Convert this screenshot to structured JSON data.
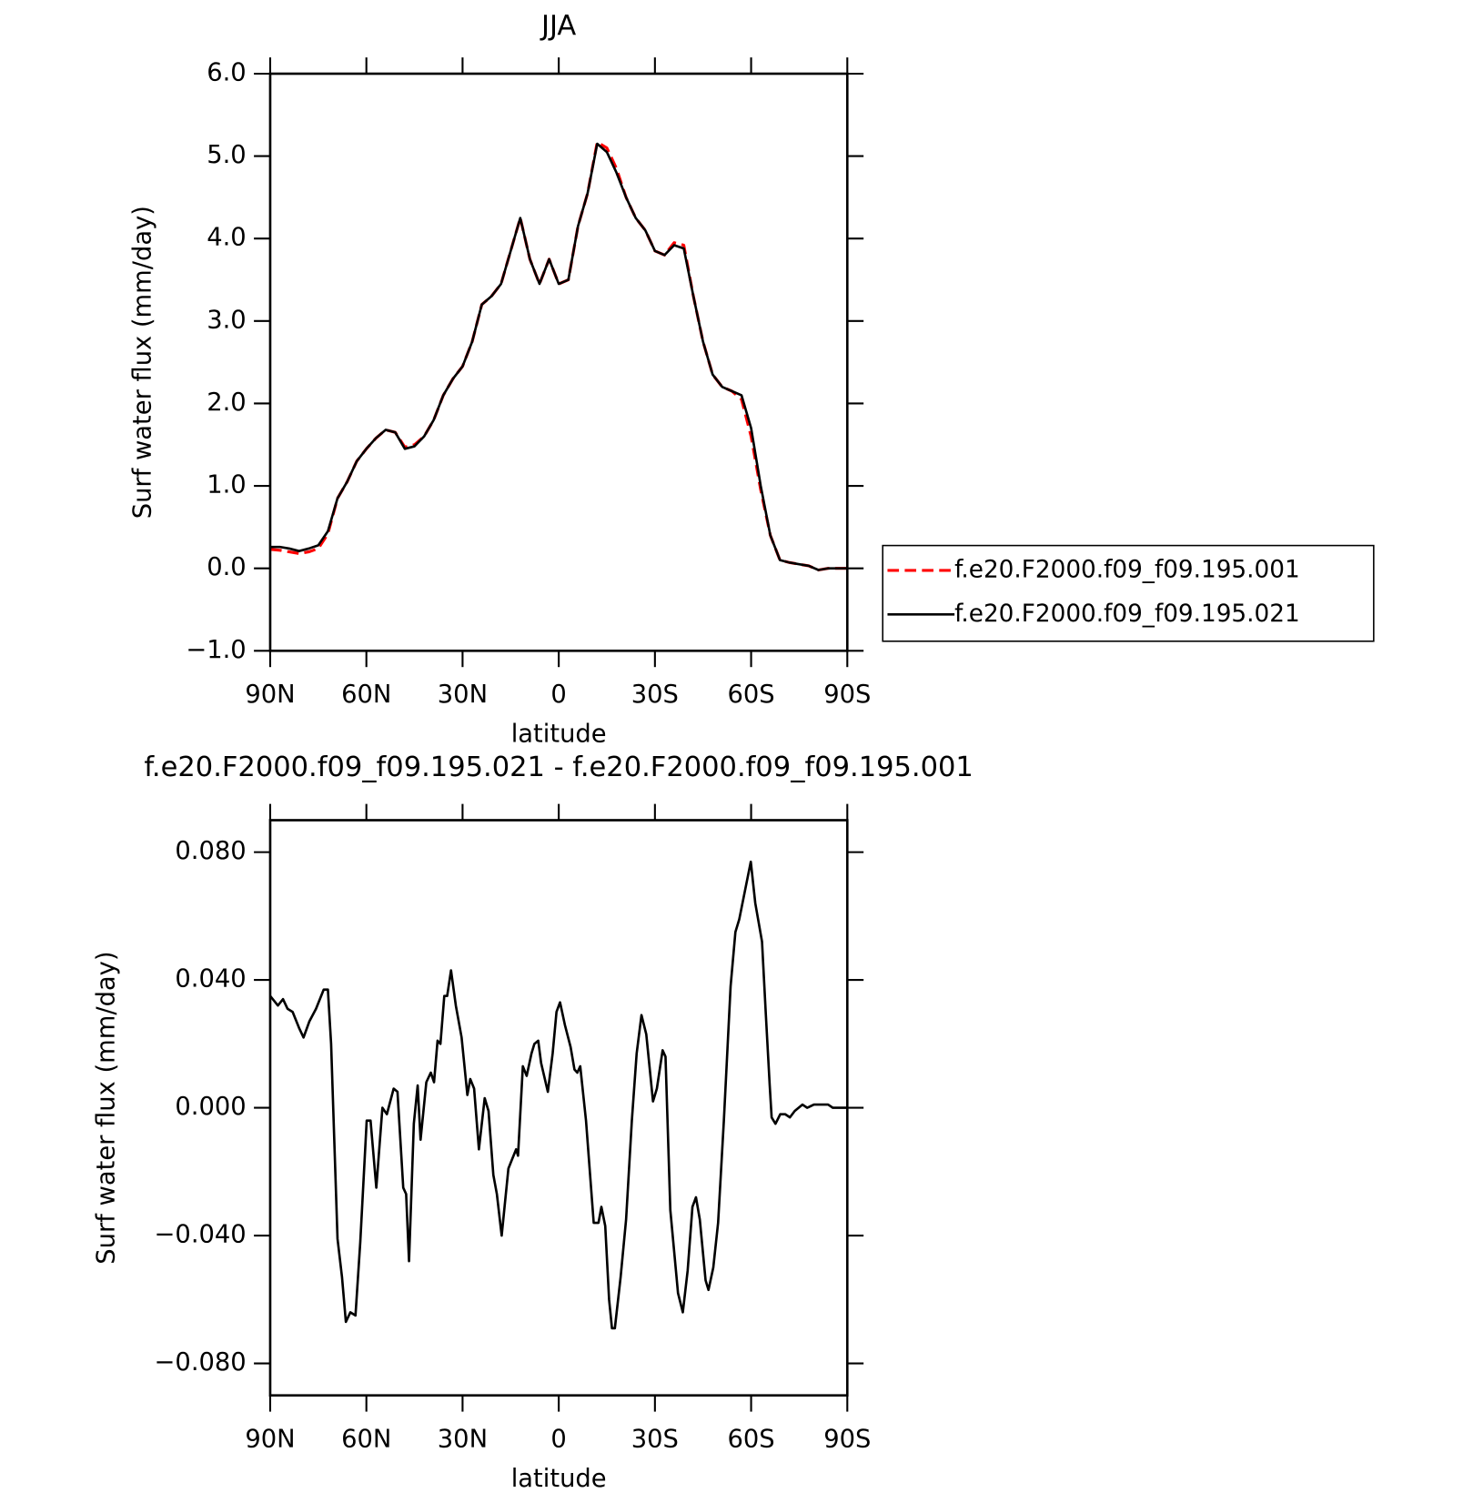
{
  "chart_data": [
    {
      "type": "line",
      "title": "JJA",
      "x_label": "latitude",
      "y_label": "Surf water flux (mm/day)",
      "xlim": [
        90,
        -90
      ],
      "xticks": [
        {
          "value": 90,
          "label": "90N"
        },
        {
          "value": 60,
          "label": "60N"
        },
        {
          "value": 30,
          "label": "30N"
        },
        0,
        {
          "value": -30,
          "label": "30S"
        },
        {
          "value": -60,
          "label": "60S"
        },
        {
          "value": -90,
          "label": "90S"
        }
      ],
      "ylim": [
        -1,
        6
      ],
      "yticks": [
        {
          "value": -1,
          "label": "−1.0"
        },
        {
          "value": 0,
          "label": "0.0"
        },
        {
          "value": 1,
          "label": "1.0"
        },
        {
          "value": 2,
          "label": "2.0"
        },
        {
          "value": 3,
          "label": "3.0"
        },
        {
          "value": 4,
          "label": "4.0"
        },
        {
          "value": 5,
          "label": "5.0"
        },
        {
          "value": 6,
          "label": "6.0"
        }
      ],
      "legend": "right",
      "x": [
        90,
        87,
        84,
        81,
        78,
        75,
        72,
        69,
        66,
        63,
        60,
        57,
        54,
        51,
        48,
        45,
        42,
        39,
        36,
        33,
        30,
        27,
        24,
        21,
        18,
        15,
        12,
        9,
        6,
        3,
        0,
        -3,
        -6,
        -9,
        -12,
        -15,
        -18,
        -21,
        -24,
        -27,
        -30,
        -33,
        -36,
        -39,
        -42,
        -45,
        -48,
        -51,
        -54,
        -57,
        -60,
        -63,
        -66,
        -69,
        -72,
        -75,
        -78,
        -81,
        -84,
        -87,
        -90
      ],
      "series": [
        {
          "name": "f.e20.F2000.f09_f09.195.001",
          "color": "#ff0000",
          "linestyle": "dashed",
          "values": [
            0.23,
            0.22,
            0.2,
            0.18,
            0.2,
            0.24,
            0.42,
            0.85,
            1.05,
            1.3,
            1.45,
            1.58,
            1.68,
            1.65,
            1.47,
            1.5,
            1.6,
            1.8,
            2.1,
            2.3,
            2.45,
            2.75,
            3.2,
            3.3,
            3.45,
            3.85,
            4.25,
            3.75,
            3.45,
            3.75,
            3.45,
            3.5,
            4.15,
            4.55,
            5.17,
            5.1,
            4.85,
            4.5,
            4.25,
            4.1,
            3.85,
            3.8,
            3.95,
            3.92,
            3.3,
            2.75,
            2.35,
            2.2,
            2.15,
            2.05,
            1.6,
            0.95,
            0.4,
            0.1,
            0.07,
            0.05,
            0.03,
            -0.02,
            0.0,
            0.0,
            0.0
          ]
        },
        {
          "name": "f.e20.F2000.f09_f09.195.021",
          "color": "#000000",
          "linestyle": "solid",
          "values": [
            0.26,
            0.26,
            0.24,
            0.21,
            0.24,
            0.28,
            0.45,
            0.85,
            1.05,
            1.3,
            1.45,
            1.58,
            1.68,
            1.65,
            1.45,
            1.48,
            1.6,
            1.8,
            2.1,
            2.3,
            2.45,
            2.75,
            3.2,
            3.3,
            3.45,
            3.85,
            4.25,
            3.75,
            3.45,
            3.75,
            3.45,
            3.5,
            4.15,
            4.55,
            5.15,
            5.05,
            4.8,
            4.5,
            4.25,
            4.1,
            3.85,
            3.8,
            3.92,
            3.88,
            3.3,
            2.75,
            2.35,
            2.2,
            2.15,
            2.1,
            1.7,
            1.0,
            0.4,
            0.1,
            0.07,
            0.05,
            0.03,
            -0.02,
            0.0,
            0.0,
            0.0
          ]
        }
      ]
    },
    {
      "type": "line",
      "title": "f.e20.F2000.f09_f09.195.021 - f.e20.F2000.f09_f09.195.001",
      "x_label": "latitude",
      "y_label": "Surf water flux (mm/day)",
      "xlim": [
        90,
        -90
      ],
      "xticks": [
        {
          "value": 90,
          "label": "90N"
        },
        {
          "value": 60,
          "label": "60N"
        },
        {
          "value": 30,
          "label": "30N"
        },
        0,
        {
          "value": -30,
          "label": "30S"
        },
        {
          "value": -60,
          "label": "60S"
        },
        {
          "value": -90,
          "label": "90S"
        }
      ],
      "ylim": [
        -0.09,
        0.09
      ],
      "yticks": [
        {
          "value": -0.08,
          "label": "−0.080"
        },
        {
          "value": -0.04,
          "label": "−0.040"
        },
        {
          "value": 0,
          "label": "0.000"
        },
        {
          "value": 0.04,
          "label": "0.040"
        },
        {
          "value": 0.08,
          "label": "0.080"
        }
      ],
      "color": "#000000",
      "x": [
        90,
        87.6,
        86,
        84.6,
        83,
        81,
        79.6,
        77.8,
        75.7,
        73.3,
        72,
        71,
        69,
        67.6,
        66.4,
        65,
        63.4,
        61.9,
        59.9,
        58.7,
        56.9,
        55,
        53.6,
        51.5,
        50.3,
        48.5,
        47.6,
        46.7,
        45.2,
        44,
        43.1,
        41.3,
        39.9,
        38.9,
        37.8,
        36.9,
        35.7,
        34.8,
        33.6,
        32.1,
        30.3,
        28.5,
        27.6,
        26.4,
        24.9,
        23.1,
        21.9,
        20.4,
        19.3,
        17.8,
        16.9,
        15.7,
        14.5,
        13.3,
        12.7,
        11.2,
        10,
        8.5,
        7.6,
        6.4,
        5.5,
        3.4,
        1.9,
        0.7,
        -0.4,
        -1.9,
        -3.7,
        -4.9,
        -5.8,
        -6.7,
        -8.5,
        -10.9,
        -12.4,
        -13.3,
        -14.5,
        -15.7,
        -16.6,
        -17.5,
        -19.3,
        -21,
        -22.8,
        -24.3,
        -25.8,
        -27.3,
        -29.4,
        -30.6,
        -32.4,
        -33.3,
        -34.8,
        -37.2,
        -38.7,
        -40.2,
        -41.7,
        -42.8,
        -44,
        -45.8,
        -46.7,
        -48.2,
        -49.7,
        -51.5,
        -53.6,
        -55.1,
        -56.3,
        -58.1,
        -59.9,
        -61.3,
        -63.4,
        -64.6,
        -65.8,
        -66.4,
        -67.6,
        -69.1,
        -70.6,
        -72.1,
        -73.6,
        -76,
        -77.5,
        -79.6,
        -82,
        -84,
        -85.5,
        -87.6,
        -90
      ],
      "values": [
        0.035,
        0.032,
        0.034,
        0.031,
        0.03,
        0.025,
        0.022,
        0.027,
        0.031,
        0.037,
        0.037,
        0.02,
        -0.041,
        -0.053,
        -0.067,
        -0.064,
        -0.065,
        -0.042,
        -0.004,
        -0.004,
        -0.025,
        0,
        -0.002,
        0.006,
        0.005,
        -0.025,
        -0.027,
        -0.048,
        -0.005,
        0.007,
        -0.01,
        0.008,
        0.011,
        0.008,
        0.021,
        0.02,
        0.035,
        0.035,
        0.043,
        0.032,
        0.022,
        0.004,
        0.009,
        0.006,
        -0.013,
        0.003,
        -0.001,
        -0.021,
        -0.027,
        -0.04,
        -0.031,
        -0.019,
        -0.016,
        -0.013,
        -0.015,
        0.013,
        0.01,
        0.017,
        0.02,
        0.021,
        0.014,
        0.005,
        0.017,
        0.03,
        0.033,
        0.026,
        0.019,
        0.012,
        0.011,
        0.013,
        -0.004,
        -0.036,
        -0.036,
        -0.031,
        -0.037,
        -0.06,
        -0.069,
        -0.069,
        -0.053,
        -0.035,
        -0.004,
        0.017,
        0.029,
        0.023,
        0.002,
        0.006,
        0.018,
        0.016,
        -0.032,
        -0.058,
        -0.064,
        -0.051,
        -0.031,
        -0.028,
        -0.035,
        -0.054,
        -0.057,
        -0.05,
        -0.036,
        -0.004,
        0.038,
        0.055,
        0.059,
        0.068,
        0.077,
        0.064,
        0.052,
        0.029,
        0.007,
        -0.003,
        -0.005,
        -0.002,
        -0.002,
        -0.003,
        -0.001,
        0.001,
        0,
        0.001,
        0.001,
        0.001,
        0,
        0,
        0
      ]
    }
  ]
}
